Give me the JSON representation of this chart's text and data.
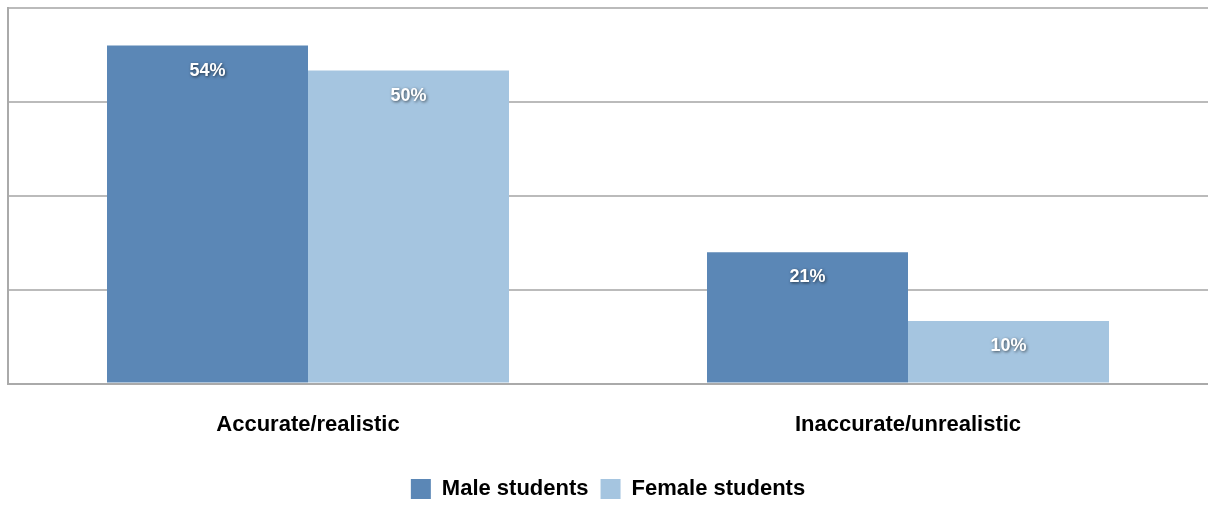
{
  "chart_data": {
    "type": "bar",
    "categories": [
      "Accurate/realistic",
      "Inaccurate/unrealistic"
    ],
    "series": [
      {
        "name": "Male students",
        "color": "#5b87b6",
        "values": [
          54,
          21
        ],
        "value_labels": [
          "54%",
          "21%"
        ]
      },
      {
        "name": "Female students",
        "color": "#a5c5e0",
        "values": [
          50,
          10
        ],
        "value_labels": [
          "50%",
          "10%"
        ]
      }
    ],
    "ylim": [
      0,
      60
    ],
    "yticks": [
      0,
      {
        "value": 15,
        "label": null
      },
      {
        "value": 30,
        "label": null
      },
      {
        "value": 45,
        "label": null
      },
      {
        "value": 60,
        "label": null
      }
    ],
    "grid": "y",
    "legend": "bottom",
    "tick_labels": "x"
  }
}
